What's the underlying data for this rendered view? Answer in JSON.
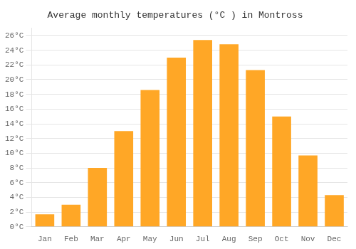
{
  "chart_data": {
    "type": "bar",
    "title": "Average monthly temperatures (°C ) in Montross",
    "categories": [
      "Jan",
      "Feb",
      "Mar",
      "Apr",
      "May",
      "Jun",
      "Jul",
      "Aug",
      "Sep",
      "Oct",
      "Nov",
      "Dec"
    ],
    "values": [
      1.7,
      3.0,
      8.0,
      13.0,
      18.6,
      23.0,
      25.4,
      24.8,
      21.3,
      15.0,
      9.7,
      4.3
    ],
    "color": "#FFA726",
    "ylim": [
      0,
      27
    ],
    "yticks": [
      {
        "value": 0,
        "label": "0°C"
      },
      {
        "value": 2,
        "label": "2°C"
      },
      {
        "value": 4,
        "label": "4°C"
      },
      {
        "value": 6,
        "label": "6°C"
      },
      {
        "value": 8,
        "label": "8°C"
      },
      {
        "value": 10,
        "label": "10°C"
      },
      {
        "value": 12,
        "label": "12°C"
      },
      {
        "value": 14,
        "label": "14°C"
      },
      {
        "value": 16,
        "label": "16°C"
      },
      {
        "value": 18,
        "label": "18°C"
      },
      {
        "value": 20,
        "label": "20°C"
      },
      {
        "value": 22,
        "label": "22°C"
      },
      {
        "value": 24,
        "label": "24°C"
      },
      {
        "value": 26,
        "label": "26°C"
      }
    ],
    "grid": "y"
  }
}
